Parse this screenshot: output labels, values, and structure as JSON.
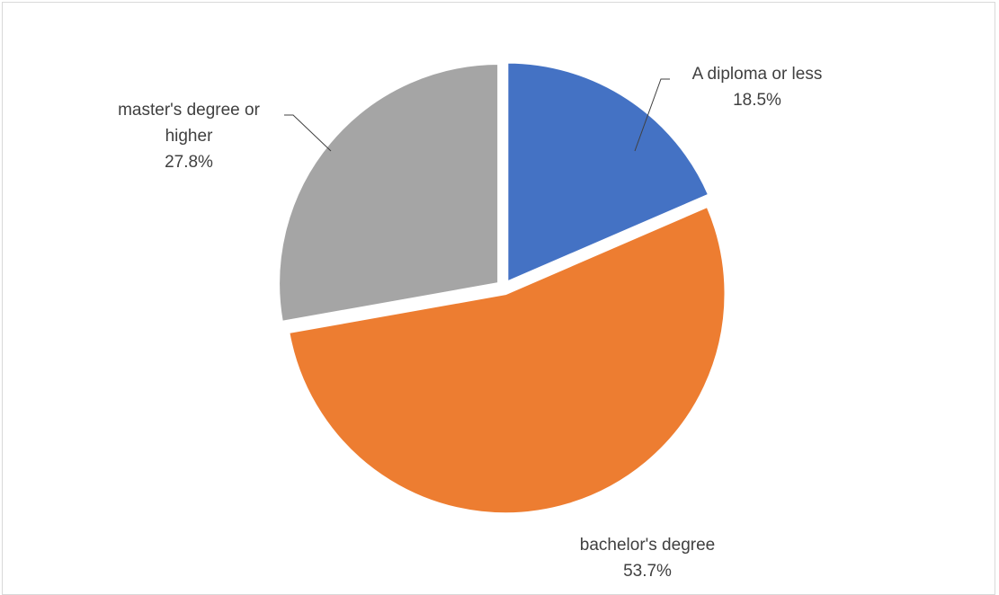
{
  "chart_data": {
    "type": "pie",
    "title": "",
    "legend": "none",
    "slices": [
      {
        "label_lines": [
          "A diploma or less"
        ],
        "value": 18.5,
        "value_label": "18.5%",
        "color": "#4472C4"
      },
      {
        "label_lines": [
          "bachelor's degree"
        ],
        "value": 53.7,
        "value_label": "53.7%",
        "color": "#ED7D31"
      },
      {
        "label_lines": [
          "master's degree or",
          "higher"
        ],
        "value": 27.8,
        "value_label": "27.8%",
        "color": "#A5A5A5"
      }
    ]
  }
}
